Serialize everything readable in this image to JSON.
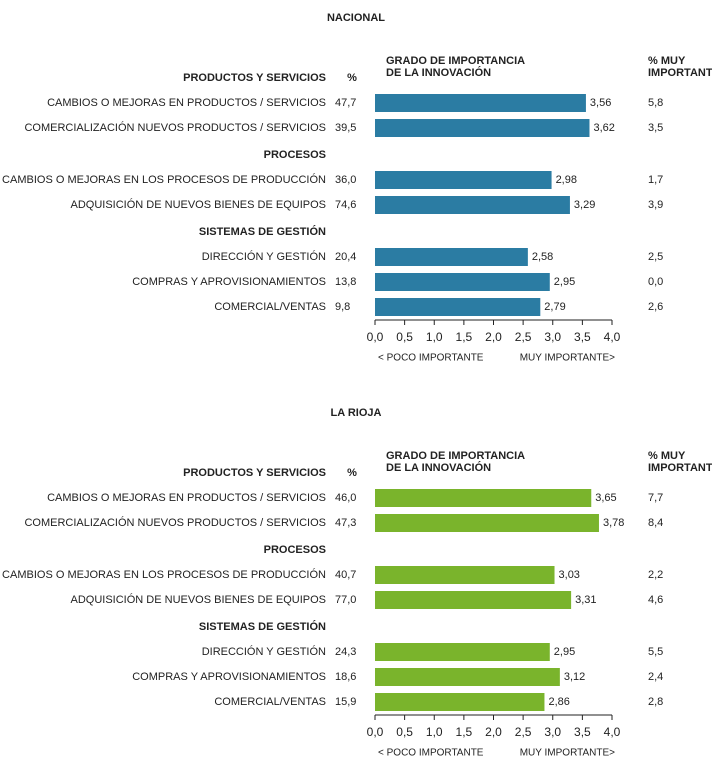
{
  "chart_data": [
    {
      "type": "bar",
      "orientation": "horizontal",
      "title": "NACIONAL",
      "color": "#2b7ca3",
      "label_color": "#3a8cc0",
      "pct_header": "%",
      "importance_header": [
        "GRADO DE IMPORTANCIA",
        "DE LA INNOVACIÓN"
      ],
      "very_header": [
        "% MUY",
        "IMPORTANTE"
      ],
      "x_label_left": "< POCO IMPORTANTE",
      "x_label_right": "MUY IMPORTANTE>",
      "xlim": [
        0,
        4
      ],
      "xticks": [
        {
          "value": 0,
          "label": "0,0"
        },
        {
          "value": 0.5,
          "label": "0,5"
        },
        {
          "value": 1,
          "label": "1,0"
        },
        {
          "value": 1.5,
          "label": "1,5"
        },
        {
          "value": 2,
          "label": "2,0"
        },
        {
          "value": 2.5,
          "label": "2,5"
        },
        {
          "value": 3,
          "label": "3,0"
        },
        {
          "value": 3.5,
          "label": "3,5"
        },
        {
          "value": 4,
          "label": "4,0"
        }
      ],
      "groups": [
        {
          "name": "PRODUCTOS Y SERVICIOS",
          "categories": [
            "CAMBIOS O MEJORAS EN PRODUCTOS / SERVICIOS",
            "COMERCIALIZACIÓN NUEVOS PRODUCTOS / SERVICIOS"
          ],
          "values": [
            3.56,
            3.62
          ],
          "value_labels": [
            "3,56",
            "3,62"
          ],
          "percent": [
            47.7,
            39.5
          ],
          "percent_labels": [
            "47,7",
            "39,5"
          ],
          "very_important": [
            5.8,
            3.5
          ],
          "very_important_labels": [
            "5,8",
            "3,5"
          ]
        },
        {
          "name": "PROCESOS",
          "categories": [
            "CAMBIOS O MEJORAS EN LOS PROCESOS DE PRODUCCIÓN",
            "ADQUISICIÓN DE NUEVOS BIENES DE EQUIPOS"
          ],
          "values": [
            2.98,
            3.29
          ],
          "value_labels": [
            "2,98",
            "3,29"
          ],
          "percent": [
            36.0,
            74.6
          ],
          "percent_labels": [
            "36,0",
            "74,6"
          ],
          "very_important": [
            1.7,
            3.9
          ],
          "very_important_labels": [
            "1,7",
            "3,9"
          ]
        },
        {
          "name": "SISTEMAS DE GESTIÓN",
          "categories": [
            "DIRECCIÓN Y GESTIÓN",
            "COMPRAS Y APROVISIONAMIENTOS",
            "COMERCIAL/VENTAS"
          ],
          "values": [
            2.58,
            2.95,
            2.79
          ],
          "value_labels": [
            "2,58",
            "2,95",
            "2,79"
          ],
          "percent": [
            20.4,
            13.8,
            9.8
          ],
          "percent_labels": [
            "20,4",
            "13,8",
            "9,8"
          ],
          "very_important": [
            2.5,
            0.0,
            2.6
          ],
          "very_important_labels": [
            "2,5",
            "0,0",
            "2,6"
          ]
        }
      ]
    },
    {
      "type": "bar",
      "orientation": "horizontal",
      "title": "LA RIOJA",
      "color": "#7ab42c",
      "label_color": "#3a8cc0",
      "pct_header": "%",
      "importance_header": [
        "GRADO DE IMPORTANCIA",
        "DE LA INNOVACIÓN"
      ],
      "very_header": [
        "% MUY",
        "IMPORTANTE"
      ],
      "x_label_left": "< POCO IMPORTANTE",
      "x_label_right": "MUY IMPORTANTE>",
      "xlim": [
        0,
        4
      ],
      "xticks": [
        {
          "value": 0,
          "label": "0,0"
        },
        {
          "value": 0.5,
          "label": "0,5"
        },
        {
          "value": 1,
          "label": "1,0"
        },
        {
          "value": 1.5,
          "label": "1,5"
        },
        {
          "value": 2,
          "label": "2,0"
        },
        {
          "value": 2.5,
          "label": "2,5"
        },
        {
          "value": 3,
          "label": "3,0"
        },
        {
          "value": 3.5,
          "label": "3,5"
        },
        {
          "value": 4,
          "label": "4,0"
        }
      ],
      "groups": [
        {
          "name": "PRODUCTOS Y SERVICIOS",
          "categories": [
            "CAMBIOS O MEJORAS EN PRODUCTOS / SERVICIOS",
            "COMERCIALIZACIÓN NUEVOS PRODUCTOS / SERVICIOS"
          ],
          "values": [
            3.65,
            3.78
          ],
          "value_labels": [
            "3,65",
            "3,78"
          ],
          "percent": [
            46.0,
            47.3
          ],
          "percent_labels": [
            "46,0",
            "47,3"
          ],
          "very_important": [
            7.7,
            8.4
          ],
          "very_important_labels": [
            "7,7",
            "8,4"
          ]
        },
        {
          "name": "PROCESOS",
          "categories": [
            "CAMBIOS O MEJORAS EN LOS PROCESOS DE PRODUCCIÓN",
            "ADQUISICIÓN DE NUEVOS BIENES DE EQUIPOS"
          ],
          "values": [
            3.03,
            3.31
          ],
          "value_labels": [
            "3,03",
            "3,31"
          ],
          "percent": [
            40.7,
            77.0
          ],
          "percent_labels": [
            "40,7",
            "77,0"
          ],
          "very_important": [
            2.2,
            4.6
          ],
          "very_important_labels": [
            "2,2",
            "4,6"
          ]
        },
        {
          "name": "SISTEMAS DE GESTIÓN",
          "categories": [
            "DIRECCIÓN Y GESTIÓN",
            "COMPRAS Y APROVISIONAMIENTOS",
            "COMERCIAL/VENTAS"
          ],
          "values": [
            2.95,
            3.12,
            2.86
          ],
          "value_labels": [
            "2,95",
            "3,12",
            "2,86"
          ],
          "percent": [
            24.3,
            18.6,
            15.9
          ],
          "percent_labels": [
            "24,3",
            "18,6",
            "15,9"
          ],
          "very_important": [
            5.5,
            2.4,
            2.8
          ],
          "very_important_labels": [
            "5,5",
            "2,4",
            "2,8"
          ]
        }
      ]
    }
  ]
}
